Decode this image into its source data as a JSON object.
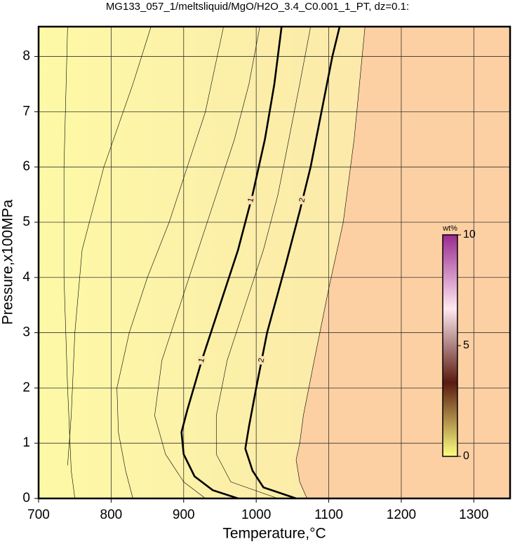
{
  "chart_data": {
    "type": "contour",
    "title": "MG133_057_1/meltsliquid/MgO/H2O_3.4_C0.001_1_PT, dz=0.1:",
    "x_label": "Temperature,°C",
    "y_label": "Pressure,x100MPa",
    "xlim": [
      700,
      1350
    ],
    "ylim": [
      0,
      8.54
    ],
    "xticks": [
      700,
      800,
      900,
      1000,
      1100,
      1200,
      1300
    ],
    "yticks": [
      0,
      1,
      2,
      3,
      4,
      5,
      6,
      7,
      8
    ],
    "grid": true,
    "background_colors": [
      "#fdf9a6",
      "#fbe2ac"
    ],
    "outer_color": "#fdd0a3",
    "line_color": "#000000",
    "contours": [
      {
        "x": [
          750,
          745,
          740,
          735,
          735,
          740
        ],
        "y": [
          0,
          0.5,
          2,
          4,
          6,
          8.54
        ]
      },
      {
        "x": [
          740,
          745,
          750,
          760,
          790,
          830,
          855
        ],
        "y": [
          0.6,
          1.5,
          3,
          4.5,
          6,
          7.5,
          8.54
        ]
      },
      {
        "x": [
          830,
          820,
          810,
          808,
          825,
          850,
          880,
          905,
          930,
          955
        ],
        "y": [
          0,
          0.5,
          1.2,
          2,
          3,
          4,
          5,
          6,
          7,
          8.54
        ]
      },
      {
        "x": [
          930,
          900,
          875,
          860,
          870,
          895,
          920,
          945,
          970,
          990,
          1005
        ],
        "y": [
          0,
          0.3,
          0.8,
          1.5,
          2.5,
          3.5,
          4.5,
          5.5,
          6.5,
          7.5,
          8.54
        ]
      },
      {
        "level": 1,
        "thick": true,
        "x": [
          975,
          940,
          915,
          900,
          897,
          905,
          925,
          950,
          975,
          995,
          1012,
          1025,
          1035
        ],
        "y": [
          0,
          0.15,
          0.4,
          0.8,
          1.2,
          1.6,
          2.5,
          3.5,
          4.5,
          5.5,
          6.5,
          7.5,
          8.54
        ]
      },
      {
        "x": [
          1030,
          965,
          945,
          945,
          960,
          985,
          1010,
          1030,
          1045,
          1060,
          1075
        ],
        "y": [
          0,
          0.3,
          0.8,
          1.5,
          2.5,
          3.5,
          4.5,
          5.5,
          6.5,
          7.5,
          8.54
        ]
      },
      {
        "level": 2,
        "thick": true,
        "x": [
          1055,
          1010,
          995,
          985,
          990,
          1000,
          1015,
          1040,
          1060,
          1075,
          1090,
          1105,
          1115
        ],
        "y": [
          0,
          0.2,
          0.5,
          0.9,
          1.3,
          2,
          3,
          4.2,
          5.2,
          6,
          7,
          8,
          8.54
        ]
      },
      {
        "x": [
          1070,
          1060,
          1055,
          1060,
          1065,
          1080,
          1100,
          1120,
          1135,
          1150
        ],
        "y": [
          0,
          0.3,
          0.7,
          1.0,
          1.5,
          2.5,
          3.8,
          5,
          6.5,
          8.54
        ]
      }
    ],
    "label_pressures": [
      2.5,
      5.4
    ],
    "colorbar": {
      "label": "wt%",
      "lim": [
        0,
        10
      ],
      "ticks": [
        0,
        5,
        10
      ],
      "colors": [
        "#ffff80",
        "#5a1a10",
        "#ffe8f0",
        "#9a2a90"
      ]
    }
  }
}
